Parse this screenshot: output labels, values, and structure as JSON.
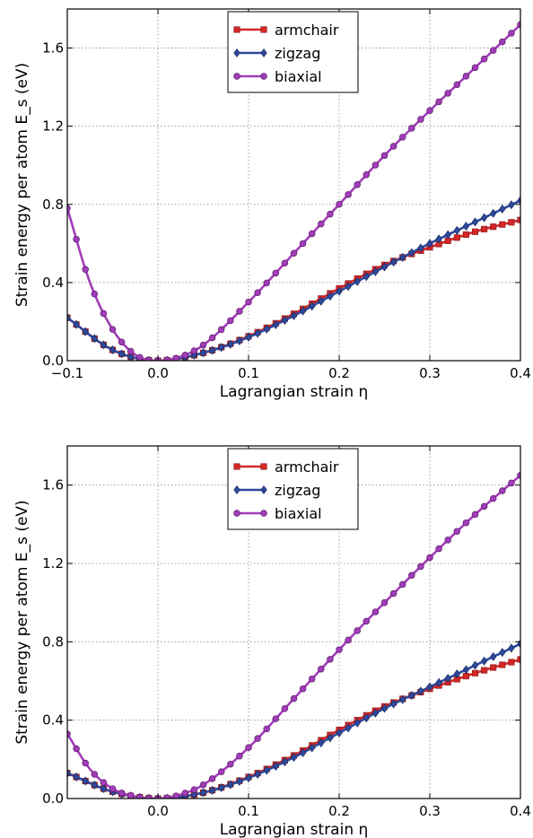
{
  "chart_data": [
    {
      "type": "line",
      "xlabel": "Lagrangian strain η",
      "ylabel": "Strain energy per atom E_s (eV)",
      "xlim": [
        -0.1,
        0.4
      ],
      "ylim": [
        0.0,
        1.8
      ],
      "xticks": [
        "−0.1",
        "0.0",
        "0.1",
        "0.2",
        "0.3",
        "0.4"
      ],
      "xtick_values": [
        -0.1,
        0.0,
        0.1,
        0.2,
        0.3,
        0.4
      ],
      "yticks": [
        "0.0",
        "0.4",
        "0.8",
        "1.2",
        "1.6"
      ],
      "ytick_values": [
        0.0,
        0.4,
        0.8,
        1.2,
        1.6
      ],
      "grid": true,
      "legend_position": "top-center",
      "series": [
        {
          "name": "armchair",
          "color": "#d62728",
          "marker": "square",
          "x": [
            -0.1,
            -0.05,
            0.0,
            0.05,
            0.1,
            0.15,
            0.2,
            0.25,
            0.3,
            0.35,
            0.4
          ],
          "y": [
            0.22,
            0.055,
            0.0,
            0.04,
            0.125,
            0.24,
            0.37,
            0.49,
            0.58,
            0.66,
            0.72
          ]
        },
        {
          "name": "zigzag",
          "color": "#2e4a9e",
          "marker": "diamond",
          "x": [
            -0.1,
            -0.05,
            0.0,
            0.05,
            0.1,
            0.15,
            0.2,
            0.25,
            0.3,
            0.35,
            0.4
          ],
          "y": [
            0.22,
            0.055,
            0.0,
            0.04,
            0.12,
            0.23,
            0.355,
            0.48,
            0.6,
            0.71,
            0.82
          ]
        },
        {
          "name": "biaxial",
          "color": "#a23db8",
          "marker": "circle",
          "x": [
            -0.1,
            -0.075,
            -0.05,
            -0.025,
            0.0,
            0.025,
            0.05,
            0.1,
            0.15,
            0.2,
            0.25,
            0.3,
            0.35,
            0.4
          ],
          "y": [
            0.78,
            0.4,
            0.16,
            0.03,
            0.0,
            0.02,
            0.08,
            0.3,
            0.55,
            0.8,
            1.05,
            1.28,
            1.5,
            1.72
          ]
        }
      ]
    },
    {
      "type": "line",
      "xlabel": "Lagrangian strain η",
      "ylabel": "Strain energy per atom E_s (eV)",
      "xlim": [
        -0.1,
        0.4
      ],
      "ylim": [
        0.0,
        1.8
      ],
      "xticks": [
        "0.0",
        "0.1",
        "0.2",
        "0.3",
        "0.4"
      ],
      "xtick_values": [
        0.0,
        0.1,
        0.2,
        0.3,
        0.4
      ],
      "yticks": [
        "0.0",
        "0.4",
        "0.8",
        "1.2",
        "1.6"
      ],
      "ytick_values": [
        0.0,
        0.4,
        0.8,
        1.2,
        1.6
      ],
      "grid": true,
      "legend_position": "top-center",
      "series": [
        {
          "name": "armchair",
          "color": "#d62728",
          "marker": "square",
          "x": [
            -0.1,
            -0.05,
            0.0,
            0.05,
            0.1,
            0.15,
            0.2,
            0.25,
            0.3,
            0.35,
            0.4
          ],
          "y": [
            0.13,
            0.035,
            0.0,
            0.03,
            0.11,
            0.22,
            0.35,
            0.47,
            0.56,
            0.64,
            0.71
          ]
        },
        {
          "name": "zigzag",
          "color": "#2e4a9e",
          "marker": "diamond",
          "x": [
            -0.1,
            -0.05,
            0.0,
            0.05,
            0.1,
            0.15,
            0.2,
            0.25,
            0.3,
            0.35,
            0.4
          ],
          "y": [
            0.13,
            0.035,
            0.0,
            0.03,
            0.105,
            0.21,
            0.335,
            0.46,
            0.57,
            0.68,
            0.79
          ]
        },
        {
          "name": "biaxial",
          "color": "#a23db8",
          "marker": "circle",
          "x": [
            -0.1,
            -0.075,
            -0.05,
            -0.025,
            0.0,
            0.025,
            0.05,
            0.1,
            0.15,
            0.2,
            0.25,
            0.3,
            0.35,
            0.4
          ],
          "y": [
            0.33,
            0.15,
            0.05,
            0.01,
            0.0,
            0.02,
            0.07,
            0.26,
            0.51,
            0.76,
            1.0,
            1.23,
            1.45,
            1.65
          ]
        }
      ]
    }
  ]
}
